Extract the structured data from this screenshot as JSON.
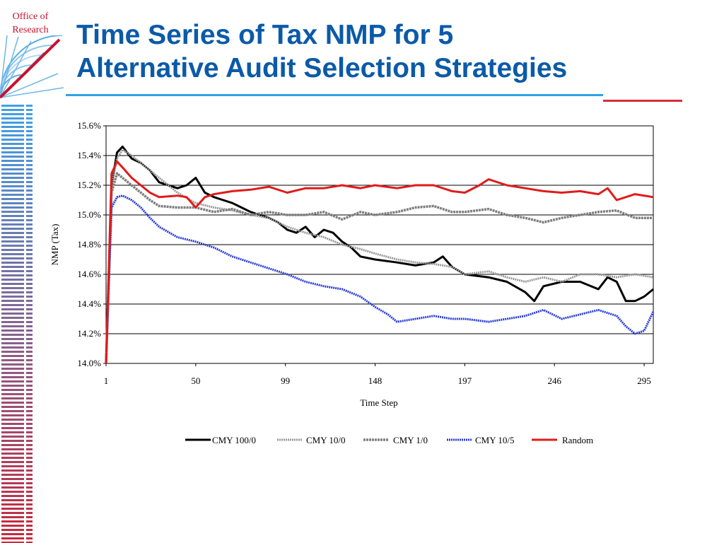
{
  "logo": {
    "line1": "Office of",
    "line2": "Research"
  },
  "slide": {
    "title_line1": "Time Series of Tax NMP for 5",
    "title_line2": "Alternative Audit Selection Strategies"
  },
  "colors": {
    "title": "#0b5aa8",
    "accent_blue": "#2fa3e6",
    "accent_red": "#d3303a",
    "logo_red": "#c8102e"
  },
  "chart_data": {
    "type": "line",
    "title": "",
    "xlabel": "Time Step",
    "ylabel": "NMP (Tax)",
    "xlim": [
      1,
      300
    ],
    "ylim": [
      14.0,
      15.6
    ],
    "x_ticks": [
      1,
      50,
      99,
      148,
      197,
      246,
      295
    ],
    "y_ticks": [
      "14.0%",
      "14.2%",
      "14.4%",
      "14.6%",
      "14.8%",
      "15.0%",
      "15.2%",
      "15.4%",
      "15.6%"
    ],
    "y_tick_values": [
      14.0,
      14.2,
      14.4,
      14.6,
      14.8,
      15.0,
      15.2,
      15.4,
      15.6
    ],
    "grid": "horizontal",
    "legend_position": "bottom",
    "series": [
      {
        "name": "CMY 100/0",
        "color": "#000000",
        "style": "solid",
        "x": [
          1,
          4,
          7,
          10,
          15,
          20,
          25,
          30,
          40,
          45,
          50,
          55,
          60,
          65,
          70,
          75,
          80,
          85,
          90,
          95,
          100,
          105,
          110,
          115,
          120,
          125,
          130,
          135,
          140,
          148,
          160,
          170,
          180,
          185,
          190,
          197,
          210,
          220,
          230,
          235,
          240,
          250,
          260,
          270,
          275,
          280,
          285,
          290,
          295,
          300
        ],
        "y": [
          14.0,
          15.2,
          15.42,
          15.46,
          15.38,
          15.35,
          15.3,
          15.22,
          15.18,
          15.2,
          15.25,
          15.15,
          15.12,
          15.1,
          15.08,
          15.05,
          15.02,
          15.0,
          14.98,
          14.95,
          14.9,
          14.88,
          14.92,
          14.85,
          14.9,
          14.88,
          14.82,
          14.78,
          14.72,
          14.7,
          14.68,
          14.66,
          14.68,
          14.72,
          14.65,
          14.6,
          14.58,
          14.55,
          14.48,
          14.42,
          14.52,
          14.55,
          14.55,
          14.5,
          14.58,
          14.55,
          14.42,
          14.42,
          14.45,
          14.5
        ]
      },
      {
        "name": "CMY 10/0",
        "color": "#9a9a9a",
        "style": "dotted-double",
        "x": [
          1,
          4,
          7,
          10,
          15,
          20,
          25,
          30,
          40,
          50,
          60,
          70,
          80,
          90,
          100,
          110,
          120,
          130,
          140,
          148,
          160,
          170,
          180,
          190,
          197,
          210,
          220,
          230,
          240,
          250,
          260,
          270,
          280,
          290,
          300
        ],
        "y": [
          14.0,
          15.2,
          15.38,
          15.44,
          15.4,
          15.35,
          15.3,
          15.25,
          15.15,
          15.08,
          15.05,
          15.03,
          15.0,
          14.98,
          14.92,
          14.88,
          14.85,
          14.8,
          14.77,
          14.74,
          14.7,
          14.68,
          14.67,
          14.65,
          14.6,
          14.62,
          14.58,
          14.55,
          14.58,
          14.55,
          14.6,
          14.6,
          14.58,
          14.6,
          14.58
        ]
      },
      {
        "name": "CMY 1/0",
        "color": "#7f7f7f",
        "style": "dashed-thick",
        "x": [
          1,
          4,
          7,
          10,
          15,
          20,
          25,
          30,
          40,
          50,
          60,
          70,
          80,
          90,
          100,
          110,
          120,
          130,
          140,
          148,
          160,
          170,
          180,
          190,
          197,
          210,
          220,
          230,
          240,
          250,
          260,
          270,
          280,
          290,
          300
        ],
        "y": [
          14.0,
          15.15,
          15.28,
          15.25,
          15.2,
          15.15,
          15.1,
          15.06,
          15.05,
          15.05,
          15.02,
          15.04,
          15.0,
          15.02,
          15.0,
          15.0,
          15.02,
          14.97,
          15.02,
          15.0,
          15.02,
          15.05,
          15.06,
          15.02,
          15.02,
          15.04,
          15.0,
          14.98,
          14.95,
          14.98,
          15.0,
          15.02,
          15.03,
          14.98,
          14.98
        ]
      },
      {
        "name": "CMY 10/5",
        "color": "#2a3cd6",
        "style": "dotted-thick",
        "x": [
          1,
          4,
          7,
          10,
          15,
          20,
          25,
          30,
          40,
          50,
          60,
          70,
          80,
          90,
          100,
          110,
          120,
          130,
          140,
          148,
          155,
          160,
          170,
          180,
          190,
          197,
          210,
          220,
          230,
          240,
          250,
          260,
          270,
          280,
          285,
          290,
          295,
          300
        ],
        "y": [
          14.0,
          15.05,
          15.12,
          15.13,
          15.1,
          15.05,
          14.98,
          14.92,
          14.85,
          14.82,
          14.78,
          14.72,
          14.68,
          14.64,
          14.6,
          14.55,
          14.52,
          14.5,
          14.45,
          14.38,
          14.33,
          14.28,
          14.3,
          14.32,
          14.3,
          14.3,
          14.28,
          14.3,
          14.32,
          14.36,
          14.3,
          14.33,
          14.36,
          14.32,
          14.25,
          14.2,
          14.22,
          14.35
        ]
      },
      {
        "name": "Random",
        "color": "#e01b1b",
        "style": "solid",
        "x": [
          1,
          4,
          7,
          10,
          15,
          20,
          25,
          30,
          40,
          45,
          50,
          55,
          60,
          70,
          80,
          90,
          100,
          110,
          120,
          130,
          140,
          148,
          160,
          170,
          180,
          190,
          197,
          205,
          210,
          220,
          230,
          240,
          250,
          260,
          270,
          275,
          280,
          290,
          300
        ],
        "y": [
          14.0,
          15.28,
          15.36,
          15.32,
          15.25,
          15.2,
          15.15,
          15.12,
          15.13,
          15.12,
          15.05,
          15.12,
          15.14,
          15.16,
          15.17,
          15.19,
          15.15,
          15.18,
          15.18,
          15.2,
          15.18,
          15.2,
          15.18,
          15.2,
          15.2,
          15.16,
          15.15,
          15.2,
          15.24,
          15.2,
          15.18,
          15.16,
          15.15,
          15.16,
          15.14,
          15.18,
          15.1,
          15.14,
          15.12
        ]
      }
    ]
  }
}
